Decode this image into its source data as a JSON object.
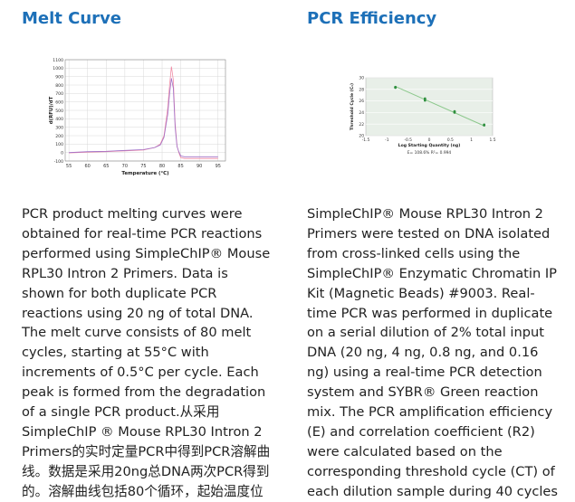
{
  "melt_curve": {
    "title": "Melt Curve",
    "description_lines": [
      "PCR product melting curves were",
      "obtained for real-time PCR reactions",
      "performed using SimpleChIP® Mouse",
      "RPL30 Intron 2 Primers. Data is",
      "shown for both duplicate PCR",
      "reactions using 20 ng of total DNA.",
      "The melt curve consists of 80 melt",
      "cycles, starting at 55°C with",
      "increments of 0.5°C per cycle. Each",
      "peak is formed from the degradation",
      "of a single PCR product.从采用",
      "SimpleChIP ® Mouse RPL30 Intron 2",
      "Primers的实时定量PCR中得到PCR溶解曲",
      "线。数据是采用20ng总DNA两次PCR得到",
      "的。溶解曲线包括80个循环，起始温度位"
    ]
  },
  "pcr_efficiency": {
    "title": "PCR Efficiency",
    "description_lines": [
      "SimpleChIP® Mouse RPL30 Intron 2",
      "Primers were tested on DNA isolated",
      "from cross-linked cells using the",
      "SimpleChIP® Enzymatic Chromatin IP",
      "Kit (Magnetic Beads) #9003. Real-",
      "time PCR was performed in duplicate",
      "on a serial dilution of 2% total input",
      "DNA (20 ng, 4 ng, 0.8 ng, and 0.16",
      "ng) using a real-time PCR detection",
      "system and SYBR® Green reaction",
      "mix. The PCR amplification efficiency",
      "(E) and correlation coefficient (R2)",
      "were calculated based on the",
      "corresponding threshold cycle (CT) of",
      "each dilution sample during 40 cycles"
    ]
  },
  "colors": {
    "title": "#1d70b8",
    "melt_series_1": "#f08ca6",
    "melt_series_2": "#a070c8",
    "melt_grid": "#d8d8d8",
    "pcr_panel": "#e8efe8",
    "pcr_line": "#8cc88c",
    "pcr_points": "#2f8f3f",
    "text": "#222222"
  },
  "chart_data": [
    {
      "type": "line",
      "xlabel": "Temperature (°C)",
      "ylabel": "d(RFU)/dT",
      "xlim": [
        54,
        97
      ],
      "ylim": [
        -100,
        1100
      ],
      "x_ticks": [
        55,
        60,
        65,
        70,
        75,
        80,
        85,
        90,
        95
      ],
      "y_ticks": [
        -100,
        0,
        100,
        200,
        300,
        400,
        500,
        600,
        700,
        800,
        900,
        1000,
        1100
      ],
      "grid": true,
      "series": [
        {
          "x": [
            55,
            60,
            65,
            70,
            75,
            78,
            79.5,
            80.5,
            81.5,
            82.0,
            82.5,
            83.0,
            83.5,
            84.0,
            84.5,
            85,
            86,
            90,
            95
          ],
          "values": [
            -5,
            5,
            10,
            20,
            30,
            60,
            100,
            200,
            520,
            800,
            1020,
            860,
            350,
            80,
            0,
            -60,
            -70,
            -70,
            -70
          ]
        },
        {
          "x": [
            55,
            60,
            65,
            70,
            75,
            78,
            79.5,
            80.5,
            81.5,
            82.0,
            82.5,
            83.0,
            83.5,
            84.0,
            84.5,
            85,
            86,
            90,
            95
          ],
          "values": [
            0,
            10,
            15,
            25,
            35,
            60,
            90,
            180,
            450,
            700,
            880,
            760,
            300,
            70,
            10,
            -40,
            -50,
            -50,
            -50
          ]
        }
      ]
    },
    {
      "type": "scatter",
      "xlabel": "Log Starting Quantity (ng)",
      "ylabel": "Threshold Cycle (Cₜ)",
      "xlim": [
        -1.5,
        1.5
      ],
      "ylim": [
        20,
        30
      ],
      "x_ticks": [
        -1.5,
        -1,
        -0.5,
        0,
        0.5,
        1,
        1.5
      ],
      "y_ticks": [
        20,
        22,
        24,
        26,
        28,
        30
      ],
      "grid": true,
      "annotation": "E= 108.6%   R²= 0.994",
      "series": [
        {
          "x": [
            -0.8,
            -0.8,
            -0.1,
            -0.1,
            0.6,
            0.6,
            1.3,
            1.3
          ],
          "values": [
            28.3,
            28.4,
            26.1,
            26.4,
            24.0,
            24.2,
            21.8,
            21.9
          ]
        }
      ],
      "fit_line": {
        "x": [
          -0.8,
          1.3
        ],
        "values": [
          28.5,
          21.7
        ]
      }
    }
  ]
}
